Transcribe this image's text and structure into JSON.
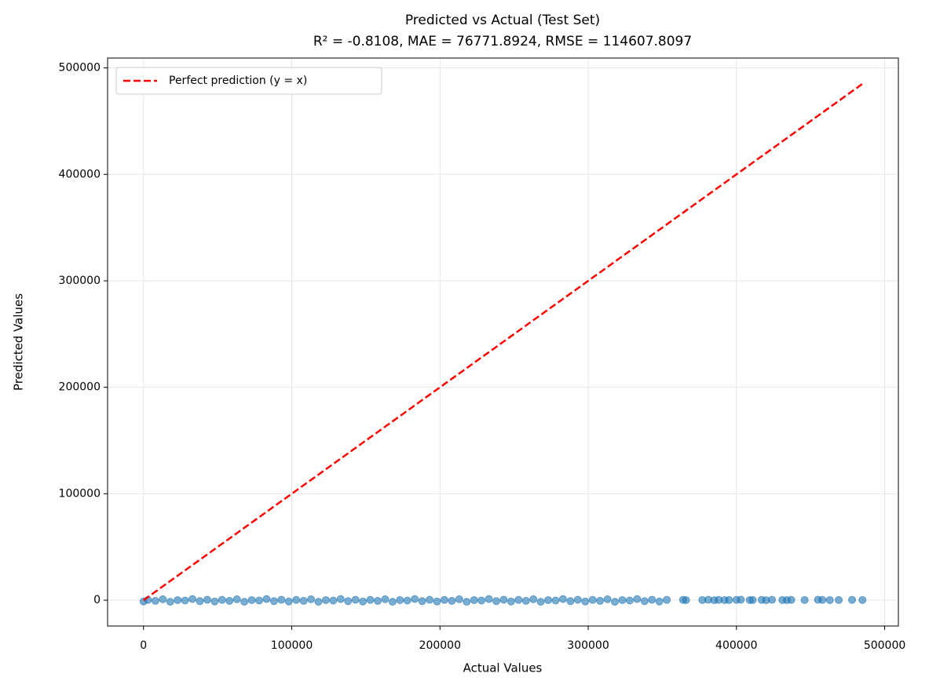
{
  "chart_data": {
    "type": "scatter",
    "title": "Predicted vs Actual (Test Set)",
    "subtitle": "R² = -0.8108, MAE = 76771.8924, RMSE = 114607.8097",
    "x_label": "Actual Values",
    "y_label": "Predicted Values",
    "xlim": [
      -24250,
      509250
    ],
    "ylim": [
      -24250,
      509250
    ],
    "xticks": [
      0,
      100000,
      200000,
      300000,
      400000,
      500000
    ],
    "yticks": [
      0,
      100000,
      200000,
      300000,
      400000,
      500000
    ],
    "grid": true,
    "legend": "upper left",
    "series": [
      {
        "type": "scatter",
        "color": "#1f77b4",
        "x": [
          0,
          3000,
          8000,
          13000,
          18000,
          23000,
          28000,
          33000,
          38000,
          43000,
          48000,
          53000,
          58000,
          63000,
          68000,
          73000,
          78000,
          83000,
          88000,
          93000,
          98000,
          103000,
          108000,
          113000,
          118000,
          123000,
          128000,
          133000,
          138000,
          143000,
          148000,
          153000,
          158000,
          163000,
          168000,
          173000,
          178000,
          183000,
          188000,
          193000,
          198000,
          203000,
          208000,
          213000,
          218000,
          223000,
          228000,
          233000,
          238000,
          243000,
          248000,
          253000,
          258000,
          263000,
          268000,
          273000,
          278000,
          283000,
          288000,
          293000,
          298000,
          303000,
          308000,
          313000,
          318000,
          323000,
          328000,
          333000,
          338000,
          343000,
          348000,
          353000,
          364000,
          366000,
          377000,
          381000,
          385000,
          388000,
          392000,
          395000,
          400000,
          403000,
          409000,
          411000,
          417000,
          420000,
          424000,
          431000,
          434000,
          437000,
          446000,
          455000,
          458000,
          463000,
          469000,
          478000,
          485000
        ],
        "values": [
          -1200,
          300,
          -600,
          900,
          -1500,
          100,
          -300,
          1100,
          -900,
          400,
          -1200,
          300,
          -600,
          900,
          -1500,
          100,
          -300,
          1100,
          -900,
          400,
          -1200,
          300,
          -600,
          900,
          -1500,
          100,
          -300,
          1100,
          -900,
          400,
          -1200,
          300,
          -600,
          900,
          -1500,
          100,
          -300,
          1100,
          -900,
          400,
          -1200,
          300,
          -600,
          900,
          -1500,
          100,
          -300,
          1100,
          -900,
          400,
          -1200,
          300,
          -600,
          900,
          -1500,
          100,
          -300,
          1100,
          -900,
          400,
          -1200,
          300,
          -600,
          900,
          -1500,
          100,
          -300,
          1100,
          -900,
          400,
          -1200,
          300,
          300,
          100,
          200,
          400,
          0,
          300,
          100,
          200,
          300,
          500,
          100,
          200,
          300,
          0,
          400,
          200,
          100,
          300,
          200,
          400,
          300,
          100,
          200,
          300,
          200
        ]
      },
      {
        "type": "line",
        "name": "Perfect prediction (y = x)",
        "color": "#ff0000",
        "style": "dashed",
        "x": [
          0,
          485000
        ],
        "values": [
          0,
          485000
        ]
      }
    ]
  }
}
